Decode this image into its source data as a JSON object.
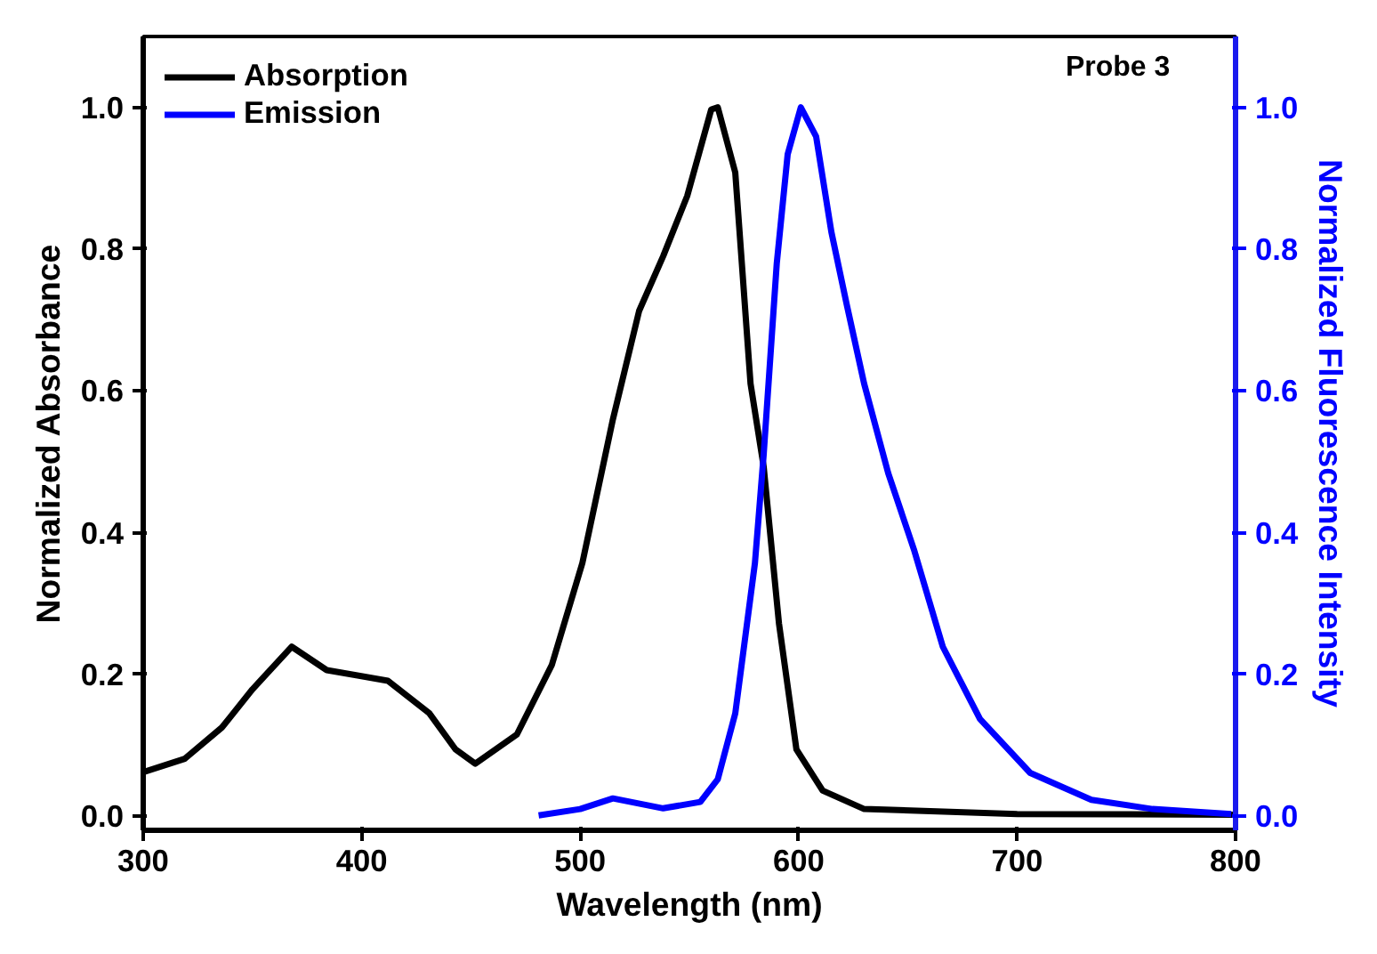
{
  "chart_data": {
    "type": "line",
    "xlabel": "Wavelength (nm)",
    "ylabel": "Normalized Absorbance",
    "y2label": "Normalized Fluorescence Intensity",
    "annotations": [
      "Probe 3"
    ],
    "xlim": [
      300,
      800
    ],
    "xticks": [
      300,
      400,
      500,
      600,
      700,
      800
    ],
    "ylim": [
      -0.02,
      1.1
    ],
    "yticks": [
      {
        "value": 0,
        "label": "0.0"
      },
      0.2,
      0.4,
      0.6,
      0.8,
      {
        "value": 1,
        "label": "1.0"
      }
    ],
    "y2lim": [
      -0.02,
      1.1
    ],
    "y2ticks": [
      {
        "value": 0,
        "label": "0.0"
      },
      0.2,
      0.4,
      0.6,
      0.8,
      {
        "value": 1,
        "label": "1.0"
      }
    ],
    "legend": "top left",
    "grid": false,
    "series": [
      {
        "name": "Absorption",
        "color": "#000000",
        "x": [
          300,
          319,
          336,
          350,
          368,
          384,
          412,
          431,
          443,
          452,
          471,
          487,
          501,
          515,
          527,
          538,
          549,
          560,
          563,
          571,
          578,
          584,
          591,
          599,
          611,
          630,
          700,
          800
        ],
        "values": [
          0.062,
          0.081,
          0.125,
          0.179,
          0.239,
          0.206,
          0.191,
          0.145,
          0.094,
          0.074,
          0.115,
          0.213,
          0.357,
          0.56,
          0.713,
          0.79,
          0.875,
          0.997,
          1.0,
          0.908,
          0.61,
          0.493,
          0.272,
          0.094,
          0.036,
          0.01,
          0.003,
          0.002
        ]
      },
      {
        "name": "Emission",
        "color": "#0000ff",
        "axis": "y2",
        "x": [
          481,
          500,
          515,
          538,
          555,
          563,
          571,
          580,
          584,
          590,
          595,
          601,
          608,
          615,
          622,
          630,
          641,
          653,
          666,
          683,
          706,
          734,
          762,
          798
        ],
        "values": [
          0.001,
          0.01,
          0.025,
          0.011,
          0.02,
          0.052,
          0.145,
          0.357,
          0.51,
          0.78,
          0.934,
          1.0,
          0.959,
          0.824,
          0.722,
          0.61,
          0.484,
          0.374,
          0.239,
          0.137,
          0.061,
          0.023,
          0.01,
          0.003
        ]
      }
    ]
  }
}
